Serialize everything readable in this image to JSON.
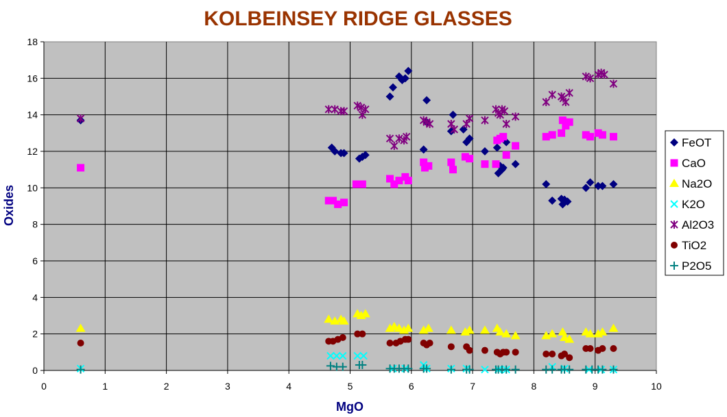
{
  "chart_data": {
    "type": "scatter",
    "title": "KOLBEINSEY RIDGE GLASSES",
    "xlabel": "MgO",
    "ylabel": "Oxides",
    "xlim": [
      0,
      10
    ],
    "ylim": [
      0,
      18
    ],
    "xticks": [
      0,
      1,
      2,
      3,
      4,
      5,
      6,
      7,
      8,
      9,
      10
    ],
    "yticks": [
      0,
      2,
      4,
      6,
      8,
      10,
      12,
      14,
      16,
      18
    ],
    "grid": true,
    "plot_background": "#c0c0c0",
    "legend_position": "right",
    "series": [
      {
        "name": "FeOT",
        "marker": "diamond",
        "color": "#000080",
        "points": [
          [
            0.6,
            13.7
          ],
          [
            4.7,
            12.2
          ],
          [
            4.75,
            12.0
          ],
          [
            4.85,
            11.9
          ],
          [
            4.9,
            11.9
          ],
          [
            5.15,
            11.6
          ],
          [
            5.2,
            11.7
          ],
          [
            5.25,
            11.8
          ],
          [
            5.65,
            15.0
          ],
          [
            5.7,
            15.5
          ],
          [
            5.8,
            16.1
          ],
          [
            5.85,
            15.9
          ],
          [
            5.9,
            16.0
          ],
          [
            5.95,
            16.4
          ],
          [
            6.2,
            12.1
          ],
          [
            6.25,
            14.8
          ],
          [
            6.25,
            13.6
          ],
          [
            6.65,
            13.1
          ],
          [
            6.68,
            14.0
          ],
          [
            6.85,
            13.2
          ],
          [
            6.9,
            12.5
          ],
          [
            6.95,
            12.7
          ],
          [
            7.2,
            12.0
          ],
          [
            7.4,
            12.2
          ],
          [
            7.42,
            10.8
          ],
          [
            7.45,
            11.2
          ],
          [
            7.48,
            11.0
          ],
          [
            7.5,
            11.1
          ],
          [
            7.55,
            12.5
          ],
          [
            7.7,
            11.3
          ],
          [
            8.2,
            10.2
          ],
          [
            8.3,
            9.3
          ],
          [
            8.45,
            9.4
          ],
          [
            8.47,
            9.1
          ],
          [
            8.5,
            9.35
          ],
          [
            8.55,
            9.25
          ],
          [
            8.85,
            10.0
          ],
          [
            8.92,
            10.3
          ],
          [
            9.05,
            10.1
          ],
          [
            9.12,
            10.1
          ],
          [
            9.3,
            10.2
          ]
        ]
      },
      {
        "name": "CaO",
        "marker": "square",
        "color": "#ff00ff",
        "points": [
          [
            0.6,
            11.1
          ],
          [
            4.65,
            9.3
          ],
          [
            4.72,
            9.3
          ],
          [
            4.8,
            9.1
          ],
          [
            4.9,
            9.2
          ],
          [
            5.1,
            10.2
          ],
          [
            5.2,
            10.2
          ],
          [
            5.65,
            10.5
          ],
          [
            5.72,
            10.2
          ],
          [
            5.8,
            10.4
          ],
          [
            5.9,
            10.6
          ],
          [
            5.95,
            10.4
          ],
          [
            6.2,
            11.4
          ],
          [
            6.22,
            11.1
          ],
          [
            6.28,
            11.2
          ],
          [
            6.65,
            11.4
          ],
          [
            6.68,
            11.0
          ],
          [
            6.88,
            11.7
          ],
          [
            6.95,
            11.6
          ],
          [
            7.2,
            11.3
          ],
          [
            7.38,
            11.3
          ],
          [
            7.4,
            12.6
          ],
          [
            7.45,
            12.7
          ],
          [
            7.5,
            12.8
          ],
          [
            7.55,
            11.8
          ],
          [
            7.7,
            12.3
          ],
          [
            8.2,
            12.8
          ],
          [
            8.3,
            12.9
          ],
          [
            8.45,
            13.0
          ],
          [
            8.47,
            13.7
          ],
          [
            8.52,
            13.4
          ],
          [
            8.58,
            13.6
          ],
          [
            8.85,
            12.9
          ],
          [
            8.92,
            12.8
          ],
          [
            9.05,
            13.0
          ],
          [
            9.12,
            12.9
          ],
          [
            9.3,
            12.8
          ]
        ]
      },
      {
        "name": "Na2O",
        "marker": "triangle",
        "color": "#ffff00",
        "points": [
          [
            0.6,
            2.3
          ],
          [
            4.65,
            2.8
          ],
          [
            4.75,
            2.7
          ],
          [
            4.85,
            2.8
          ],
          [
            4.9,
            2.7
          ],
          [
            5.12,
            3.1
          ],
          [
            5.18,
            3.0
          ],
          [
            5.25,
            3.1
          ],
          [
            5.65,
            2.3
          ],
          [
            5.72,
            2.4
          ],
          [
            5.8,
            2.3
          ],
          [
            5.88,
            2.2
          ],
          [
            5.95,
            2.3
          ],
          [
            6.2,
            2.2
          ],
          [
            6.28,
            2.3
          ],
          [
            6.65,
            2.2
          ],
          [
            6.88,
            2.1
          ],
          [
            6.95,
            2.2
          ],
          [
            7.2,
            2.2
          ],
          [
            7.4,
            2.3
          ],
          [
            7.45,
            2.1
          ],
          [
            7.55,
            2.0
          ],
          [
            7.7,
            1.9
          ],
          [
            8.2,
            1.9
          ],
          [
            8.3,
            2.0
          ],
          [
            8.47,
            2.1
          ],
          [
            8.5,
            1.8
          ],
          [
            8.58,
            1.7
          ],
          [
            8.85,
            2.1
          ],
          [
            8.92,
            2.0
          ],
          [
            9.05,
            2.0
          ],
          [
            9.12,
            2.1
          ],
          [
            9.3,
            2.3
          ]
        ]
      },
      {
        "name": "K2O",
        "marker": "x",
        "color": "#00ffff",
        "points": [
          [
            0.6,
            0.1
          ],
          [
            4.68,
            0.8
          ],
          [
            4.78,
            0.8
          ],
          [
            4.88,
            0.8
          ],
          [
            5.12,
            0.8
          ],
          [
            5.22,
            0.8
          ],
          [
            5.7,
            0.1
          ],
          [
            5.9,
            0.1
          ],
          [
            6.2,
            0.3
          ],
          [
            6.25,
            0.1
          ],
          [
            6.65,
            0.1
          ],
          [
            6.9,
            0.1
          ],
          [
            7.2,
            0.05
          ],
          [
            7.42,
            0.05
          ],
          [
            7.55,
            0.05
          ],
          [
            8.3,
            0.2
          ],
          [
            8.5,
            0.1
          ],
          [
            8.9,
            0.05
          ],
          [
            9.1,
            0.05
          ],
          [
            9.3,
            0.05
          ]
        ]
      },
      {
        "name": "Al2O3",
        "marker": "star",
        "color": "#800080",
        "points": [
          [
            0.6,
            13.8
          ],
          [
            4.65,
            14.3
          ],
          [
            4.75,
            14.3
          ],
          [
            4.85,
            14.2
          ],
          [
            4.9,
            14.2
          ],
          [
            5.12,
            14.5
          ],
          [
            5.18,
            14.4
          ],
          [
            5.2,
            14.0
          ],
          [
            5.25,
            14.3
          ],
          [
            5.65,
            12.7
          ],
          [
            5.72,
            12.3
          ],
          [
            5.8,
            12.7
          ],
          [
            5.88,
            12.6
          ],
          [
            5.92,
            12.8
          ],
          [
            6.2,
            13.7
          ],
          [
            6.25,
            13.6
          ],
          [
            6.3,
            13.5
          ],
          [
            6.65,
            13.5
          ],
          [
            6.7,
            13.2
          ],
          [
            6.9,
            13.5
          ],
          [
            6.95,
            13.8
          ],
          [
            7.2,
            13.7
          ],
          [
            7.38,
            14.3
          ],
          [
            7.42,
            14.1
          ],
          [
            7.45,
            14.0
          ],
          [
            7.48,
            14.3
          ],
          [
            7.52,
            14.2
          ],
          [
            7.55,
            13.5
          ],
          [
            7.7,
            13.9
          ],
          [
            8.2,
            14.7
          ],
          [
            8.3,
            15.1
          ],
          [
            8.45,
            15.0
          ],
          [
            8.48,
            14.9
          ],
          [
            8.52,
            14.7
          ],
          [
            8.58,
            15.2
          ],
          [
            8.85,
            16.1
          ],
          [
            8.92,
            16.0
          ],
          [
            9.05,
            16.2
          ],
          [
            9.1,
            16.3
          ],
          [
            9.15,
            16.2
          ],
          [
            9.3,
            15.7
          ]
        ]
      },
      {
        "name": "TiO2",
        "marker": "circle",
        "color": "#800000",
        "points": [
          [
            0.6,
            1.5
          ],
          [
            4.65,
            1.6
          ],
          [
            4.72,
            1.6
          ],
          [
            4.8,
            1.7
          ],
          [
            4.88,
            1.8
          ],
          [
            5.12,
            2.0
          ],
          [
            5.2,
            2.0
          ],
          [
            5.65,
            1.5
          ],
          [
            5.75,
            1.5
          ],
          [
            5.82,
            1.6
          ],
          [
            5.9,
            1.7
          ],
          [
            5.95,
            1.7
          ],
          [
            6.2,
            1.5
          ],
          [
            6.25,
            1.4
          ],
          [
            6.3,
            1.5
          ],
          [
            6.65,
            1.3
          ],
          [
            6.9,
            1.3
          ],
          [
            6.95,
            1.1
          ],
          [
            7.2,
            1.1
          ],
          [
            7.4,
            1.0
          ],
          [
            7.45,
            0.9
          ],
          [
            7.5,
            1.0
          ],
          [
            7.55,
            1.0
          ],
          [
            7.7,
            1.0
          ],
          [
            8.2,
            0.9
          ],
          [
            8.3,
            0.9
          ],
          [
            8.45,
            0.8
          ],
          [
            8.5,
            0.9
          ],
          [
            8.58,
            0.7
          ],
          [
            8.85,
            1.2
          ],
          [
            8.92,
            1.2
          ],
          [
            9.05,
            1.1
          ],
          [
            9.12,
            1.2
          ],
          [
            9.3,
            1.2
          ]
        ]
      },
      {
        "name": "P2O5",
        "marker": "plus",
        "color": "#008080",
        "points": [
          [
            0.6,
            0.05
          ],
          [
            4.68,
            0.25
          ],
          [
            4.78,
            0.2
          ],
          [
            4.88,
            0.2
          ],
          [
            5.15,
            0.3
          ],
          [
            5.2,
            0.3
          ],
          [
            5.65,
            0.1
          ],
          [
            5.72,
            0.1
          ],
          [
            5.8,
            0.1
          ],
          [
            5.88,
            0.1
          ],
          [
            5.95,
            0.1
          ],
          [
            6.2,
            0.1
          ],
          [
            6.25,
            0.1
          ],
          [
            6.65,
            0.05
          ],
          [
            6.9,
            0.05
          ],
          [
            6.95,
            0.05
          ],
          [
            7.38,
            0.05
          ],
          [
            7.42,
            0.05
          ],
          [
            7.48,
            0.05
          ],
          [
            7.55,
            0.05
          ],
          [
            7.7,
            0.05
          ],
          [
            8.2,
            0.05
          ],
          [
            8.3,
            0.05
          ],
          [
            8.45,
            0.05
          ],
          [
            8.5,
            0.05
          ],
          [
            8.58,
            0.05
          ],
          [
            8.85,
            0.05
          ],
          [
            8.95,
            0.05
          ],
          [
            9.05,
            0.05
          ],
          [
            9.12,
            0.05
          ],
          [
            9.3,
            0.05
          ]
        ]
      }
    ]
  }
}
